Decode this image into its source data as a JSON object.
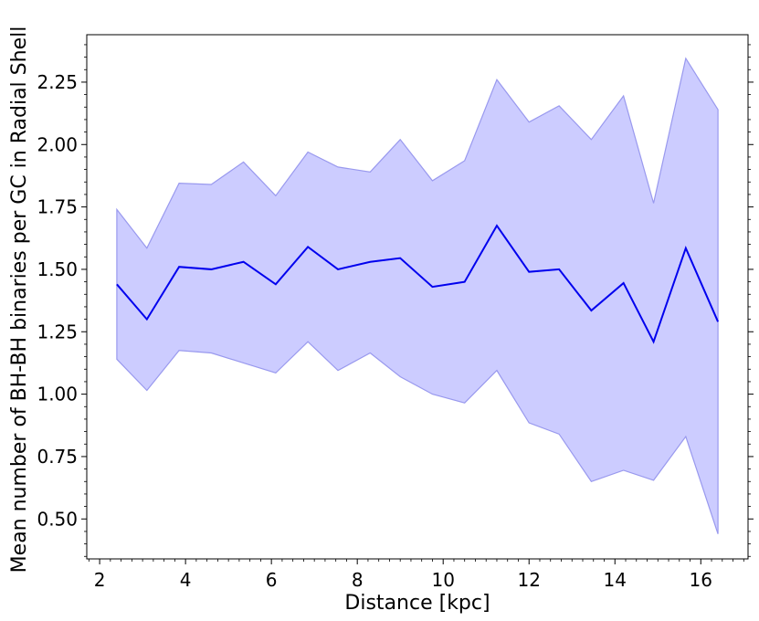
{
  "chart_data": {
    "type": "line",
    "title": "",
    "xlabel": "Distance [kpc]",
    "ylabel": "Mean number of BH-BH binaries per GC in Radial Shell",
    "xlim": [
      1.7,
      17.1
    ],
    "ylim": [
      0.34,
      2.44
    ],
    "x_ticks": [
      2,
      4,
      6,
      8,
      10,
      12,
      14,
      16
    ],
    "y_ticks": [
      0.5,
      0.75,
      1.0,
      1.25,
      1.5,
      1.75,
      2.0,
      2.25
    ],
    "x_tick_labels": [
      "2",
      "4",
      "6",
      "8",
      "10",
      "12",
      "14",
      "16"
    ],
    "y_tick_labels": [
      "0.50",
      "0.75",
      "1.00",
      "1.25",
      "1.50",
      "1.75",
      "2.00",
      "2.25"
    ],
    "x": [
      2.4,
      3.1,
      3.85,
      4.6,
      5.35,
      6.1,
      6.85,
      7.55,
      8.3,
      9.0,
      9.75,
      10.5,
      11.25,
      12.0,
      12.7,
      13.45,
      14.2,
      14.9,
      15.65,
      16.4
    ],
    "series": [
      {
        "values": [
          1.44,
          1.3,
          1.51,
          1.5,
          1.53,
          1.44,
          1.59,
          1.5,
          1.53,
          1.545,
          1.43,
          1.45,
          1.675,
          1.49,
          1.5,
          1.335,
          1.445,
          1.21,
          1.585,
          1.29
        ],
        "lower": [
          1.14,
          1.015,
          1.175,
          1.165,
          1.125,
          1.085,
          1.21,
          1.095,
          1.165,
          1.07,
          1.0,
          0.965,
          1.095,
          0.885,
          0.84,
          0.65,
          0.695,
          0.655,
          0.83,
          0.44
        ],
        "upper": [
          1.74,
          1.585,
          1.845,
          1.84,
          1.93,
          1.795,
          1.97,
          1.91,
          1.89,
          2.02,
          1.855,
          1.935,
          2.26,
          2.09,
          2.155,
          2.02,
          2.195,
          1.765,
          2.345,
          2.14
        ]
      }
    ],
    "colors": {
      "line": "#0000ee",
      "band_fill": "#ccccff",
      "band_edge": "#9999ee"
    },
    "grid": false,
    "legend": "none"
  }
}
